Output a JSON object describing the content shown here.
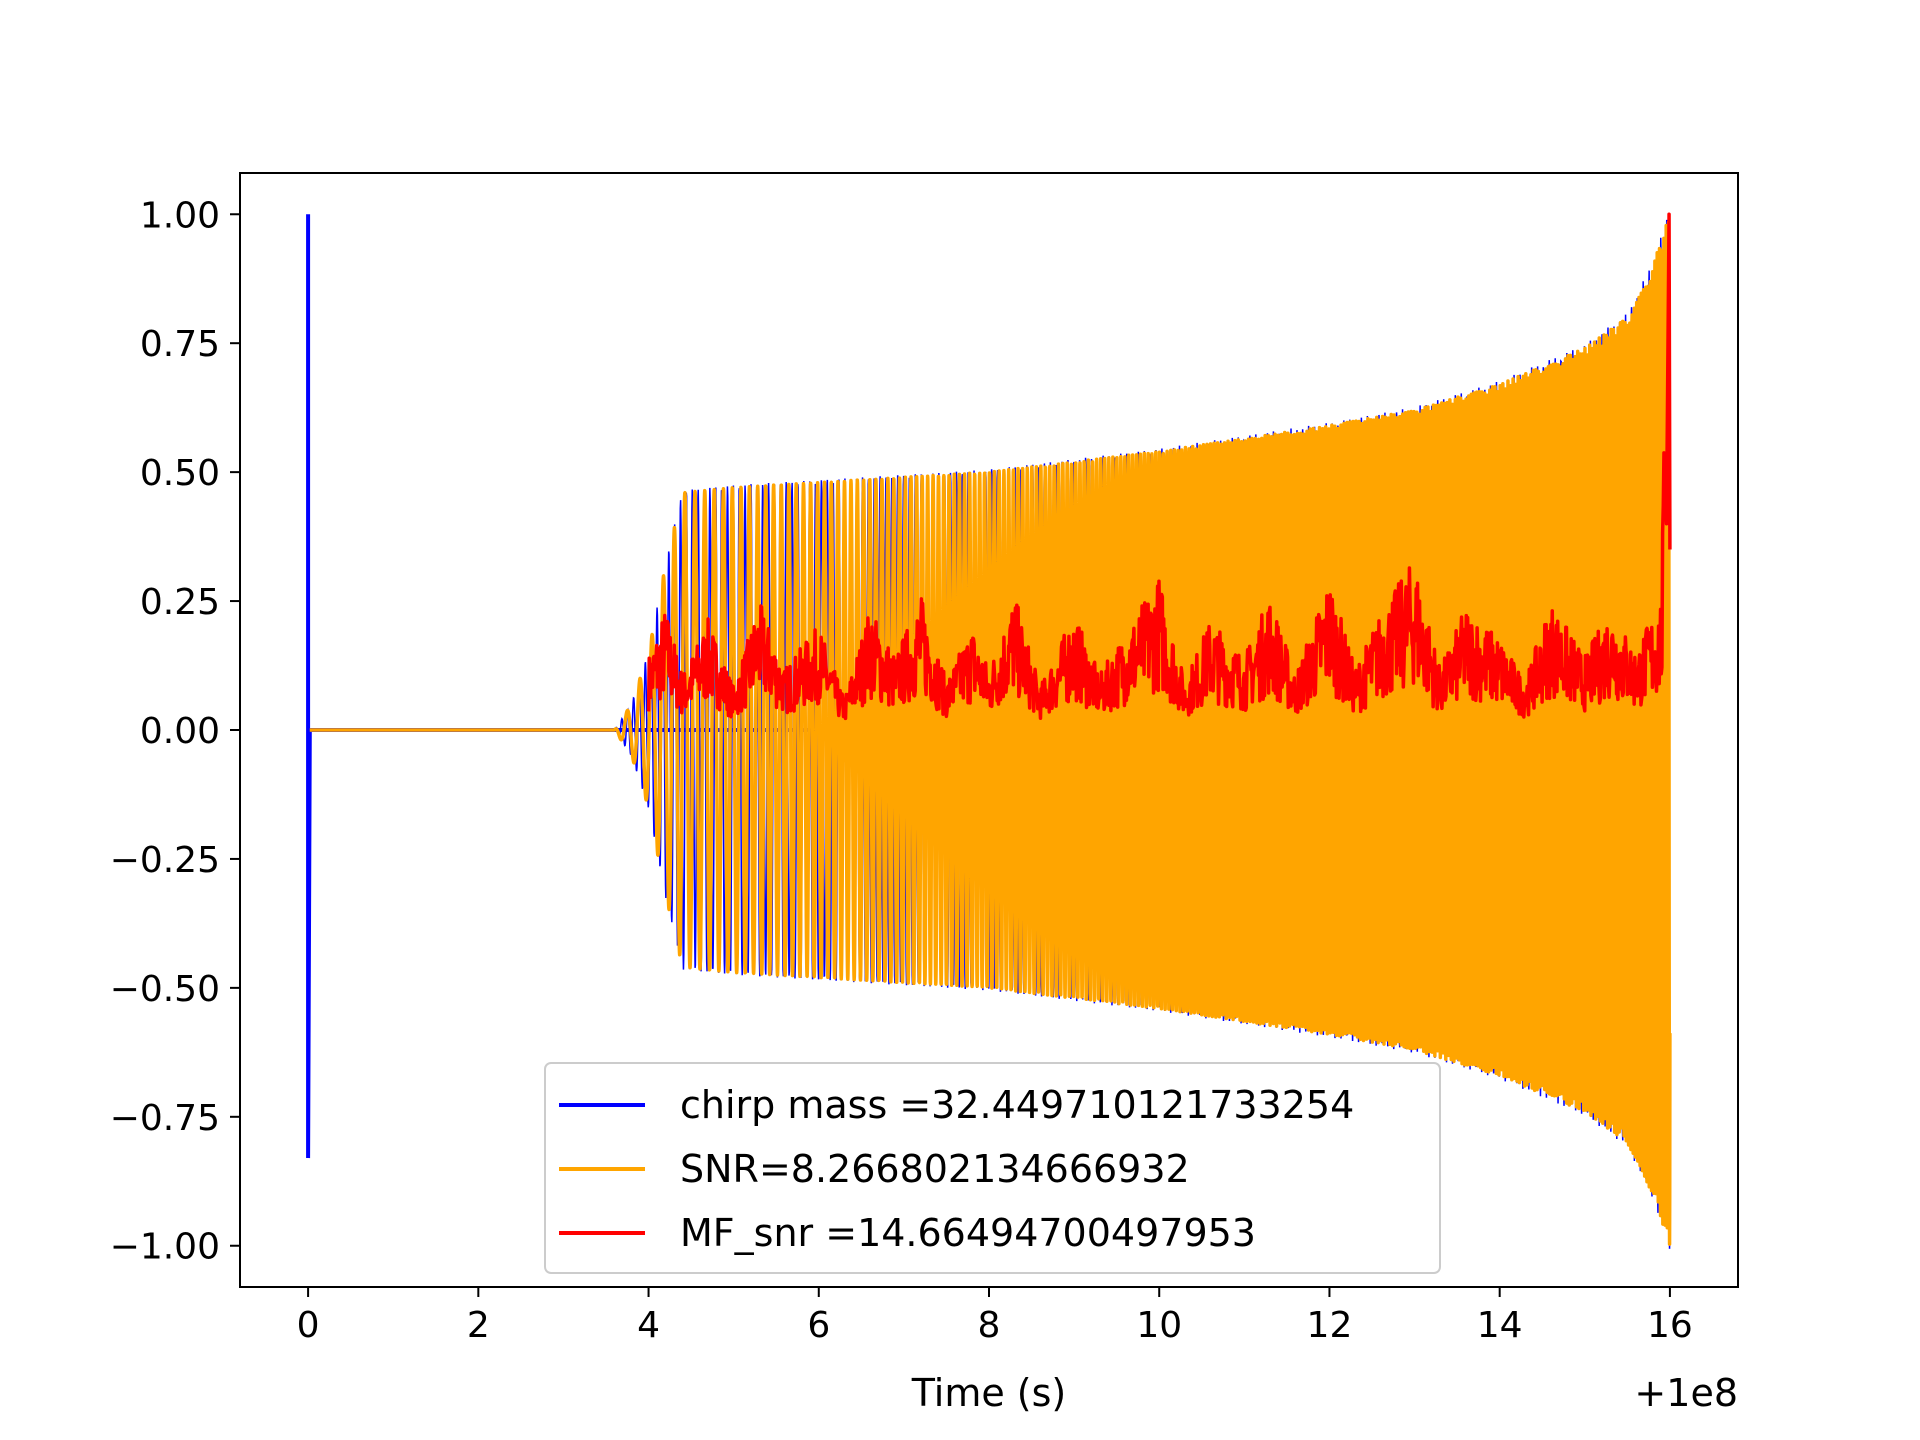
{
  "chart_data": {
    "type": "line",
    "title": "",
    "xlabel": "Time (s)",
    "ylabel": "",
    "x_offset_label": "+1e8",
    "xlim": [
      -0.8,
      16.8
    ],
    "ylim": [
      -1.08,
      1.08
    ],
    "x_ticks": [
      0,
      2,
      4,
      6,
      8,
      10,
      12,
      14,
      16
    ],
    "x_tick_labels": [
      "0",
      "2",
      "4",
      "6",
      "8",
      "10",
      "12",
      "14",
      "16"
    ],
    "y_ticks": [
      1.0,
      0.75,
      0.5,
      0.25,
      0.0,
      -0.25,
      -0.5,
      -0.75,
      -1.0
    ],
    "y_tick_labels": [
      "1.00",
      "0.75",
      "0.50",
      "0.25",
      "0.00",
      "−0.25",
      "−0.50",
      "−0.75",
      "−1.00"
    ],
    "grid": false,
    "legend_position": "lower-center",
    "series": [
      {
        "name": "chirp mass =32.449710121733254",
        "color": "#0000ff",
        "x": [
          0.0,
          0.0,
          0.02,
          0.02,
          0.03,
          16.0
        ],
        "y": [
          1.0,
          -0.83,
          0.0,
          0.0,
          0.0,
          0.0
        ]
      },
      {
        "name": "SNR=8.266802134666932",
        "color": "#ffa500",
        "x": [
          0.0,
          3.6,
          3.8,
          4.0,
          4.2,
          4.4,
          5.0,
          6.0,
          8.0,
          10.0,
          12.0,
          13.0,
          14.0,
          15.0,
          15.5,
          15.8,
          16.0
        ],
        "envelope": [
          0.0,
          0.0,
          0.05,
          0.15,
          0.32,
          0.46,
          0.47,
          0.48,
          0.5,
          0.54,
          0.59,
          0.62,
          0.67,
          0.74,
          0.8,
          0.9,
          1.0
        ]
      },
      {
        "name": "MF_snr =14.66494700497953",
        "color": "#ff0000",
        "x": [
          4.0,
          4.2,
          4.4,
          4.7,
          5.0,
          5.3,
          5.6,
          6.0,
          6.3,
          6.6,
          6.9,
          7.2,
          7.5,
          7.8,
          8.0,
          8.3,
          8.6,
          9.0,
          9.3,
          9.6,
          10.0,
          10.3,
          10.6,
          11.0,
          11.3,
          11.6,
          12.0,
          12.3,
          12.6,
          13.0,
          13.3,
          13.6,
          14.0,
          14.3,
          14.6,
          15.0,
          15.3,
          15.6,
          15.9,
          16.0
        ],
        "y": [
          0.12,
          0.2,
          0.09,
          0.18,
          0.07,
          0.21,
          0.1,
          0.17,
          0.05,
          0.2,
          0.12,
          0.22,
          0.08,
          0.17,
          0.1,
          0.22,
          0.07,
          0.19,
          0.09,
          0.16,
          0.25,
          0.08,
          0.18,
          0.12,
          0.22,
          0.09,
          0.25,
          0.1,
          0.19,
          0.28,
          0.1,
          0.2,
          0.15,
          0.08,
          0.21,
          0.12,
          0.2,
          0.13,
          0.22,
          1.0
        ]
      }
    ]
  }
}
